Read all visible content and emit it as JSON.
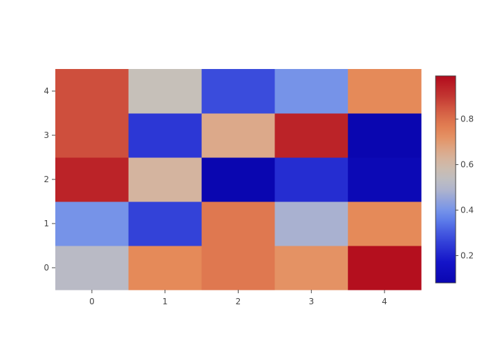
{
  "chart_data": {
    "type": "heatmap",
    "title": "",
    "xlabel": "",
    "ylabel": "",
    "x": [
      0,
      1,
      2,
      3,
      4
    ],
    "y": [
      0,
      1,
      2,
      3,
      4
    ],
    "z": [
      [
        0.52,
        0.74,
        0.78,
        0.72,
        0.98
      ],
      [
        0.4,
        0.26,
        0.78,
        0.48,
        0.74
      ],
      [
        0.94,
        0.62,
        0.08,
        0.22,
        0.1
      ],
      [
        0.86,
        0.24,
        0.66,
        0.94,
        0.08
      ],
      [
        0.86,
        0.56,
        0.28,
        0.4,
        0.74
      ]
    ],
    "x_tick_labels": [
      "0",
      "1",
      "2",
      "3",
      "4"
    ],
    "y_tick_labels": [
      "0",
      "1",
      "2",
      "3",
      "4"
    ],
    "colorscale": "coolwarm",
    "colorbar": {
      "range": [
        0.08,
        0.99
      ],
      "ticks": [
        0.2,
        0.4,
        0.6,
        0.8
      ],
      "tick_labels": [
        "0.2",
        "0.4",
        "0.6",
        "0.8"
      ]
    },
    "colors": {
      "low": "#0a06b0",
      "mid": "#c4c1bc",
      "high": "#b40a1e"
    },
    "grid": false,
    "legend": "colorbar right"
  }
}
